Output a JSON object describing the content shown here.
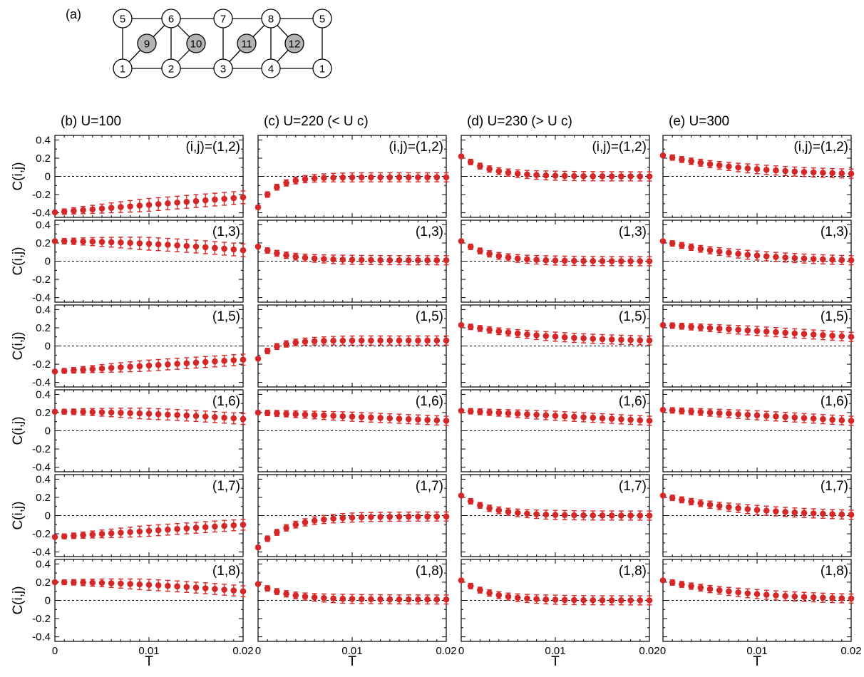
{
  "figure": {
    "lattice_panel_label": "(a)",
    "lattice_nodes": [
      {
        "label": "5",
        "fill": "white"
      },
      {
        "label": "6",
        "fill": "white"
      },
      {
        "label": "7",
        "fill": "white"
      },
      {
        "label": "8",
        "fill": "white"
      },
      {
        "label": "5",
        "fill": "white"
      },
      {
        "label": "9",
        "fill": "gray"
      },
      {
        "label": "10",
        "fill": "gray"
      },
      {
        "label": "11",
        "fill": "gray"
      },
      {
        "label": "12",
        "fill": "gray"
      },
      {
        "label": "1",
        "fill": "white"
      },
      {
        "label": "2",
        "fill": "white"
      },
      {
        "label": "3",
        "fill": "white"
      },
      {
        "label": "4",
        "fill": "white"
      },
      {
        "label": "1",
        "fill": "white"
      }
    ],
    "colors": {
      "marker": "#d62728",
      "error_bar": "#d62728",
      "zero_line": "#000000",
      "gray_site": "#b3b3b3"
    }
  },
  "chart_data": {
    "type": "scatter",
    "xlabel": "T",
    "ylabel": "C(i,j)",
    "xlim": [
      0,
      0.02
    ],
    "ylim": [
      -0.45,
      0.45
    ],
    "x_ticks": [
      0,
      0.01,
      0.02
    ],
    "x_tick_labels": [
      "0",
      "0.01",
      "0.02"
    ],
    "y_ticks": [
      0.4,
      0.2,
      0,
      -0.2,
      -0.4
    ],
    "y_tick_labels": [
      "0.4",
      "0.2",
      "0",
      "-0.2",
      "-0.4"
    ],
    "zero_line": "dashed",
    "x": [
      0,
      0.001,
      0.002,
      0.003,
      0.004,
      0.005,
      0.006,
      0.007,
      0.008,
      0.009,
      0.01,
      0.011,
      0.012,
      0.013,
      0.014,
      0.015,
      0.016,
      0.017,
      0.018,
      0.019,
      0.02
    ],
    "columns": [
      {
        "label": "(b)  U=100",
        "rows": [
          {
            "label": "(i,j)=(1,2)",
            "y0": -0.395,
            "y_end": -0.23,
            "shape": "lin",
            "err0": 0.01,
            "err_end": 0.07
          },
          {
            "label": "(1,3)",
            "y0": 0.22,
            "y_end": 0.12,
            "shape": "late",
            "err0": 0.01,
            "err_end": 0.07
          },
          {
            "label": "(1,5)",
            "y0": -0.28,
            "y_end": -0.15,
            "shape": "lin",
            "err0": 0.01,
            "err_end": 0.06
          },
          {
            "label": "(1,6)",
            "y0": 0.21,
            "y_end": 0.13,
            "shape": "late",
            "err0": 0.01,
            "err_end": 0.06
          },
          {
            "label": "(1,7)",
            "y0": -0.235,
            "y_end": -0.1,
            "shape": "lin",
            "err0": 0.01,
            "err_end": 0.06
          },
          {
            "label": "(1,8)",
            "y0": 0.2,
            "y_end": 0.1,
            "shape": "late",
            "err0": 0.01,
            "err_end": 0.06
          }
        ]
      },
      {
        "label": "(c)  U=220  (< U c)",
        "rows": [
          {
            "label": "(i,j)=(1,2)",
            "y0": -0.34,
            "y_end": -0.01,
            "shape": "vfast",
            "err0": 0.02,
            "err_end": 0.05
          },
          {
            "label": "(1,3)",
            "y0": 0.16,
            "y_end": 0.01,
            "shape": "fast",
            "err0": 0.02,
            "err_end": 0.05
          },
          {
            "label": "(1,5)",
            "y0": -0.14,
            "y_end": 0.06,
            "shape": "vfast",
            "err0": 0.02,
            "err_end": 0.05
          },
          {
            "label": "(1,6)",
            "y0": 0.2,
            "y_end": 0.11,
            "shape": "lin",
            "err0": 0.02,
            "err_end": 0.05
          },
          {
            "label": "(1,7)",
            "y0": -0.35,
            "y_end": -0.01,
            "shape": "fast",
            "err0": 0.02,
            "err_end": 0.05
          },
          {
            "label": "(1,8)",
            "y0": 0.18,
            "y_end": 0.01,
            "shape": "fast",
            "err0": 0.02,
            "err_end": 0.05
          }
        ]
      },
      {
        "label": "(d)  U=230  (> U c)",
        "rows": [
          {
            "label": "(i,j)=(1,2)",
            "y0": 0.22,
            "y_end": 0.0,
            "shape": "fast",
            "err0": 0.02,
            "err_end": 0.05
          },
          {
            "label": "(1,3)",
            "y0": 0.22,
            "y_end": 0.0,
            "shape": "fast",
            "err0": 0.02,
            "err_end": 0.05
          },
          {
            "label": "(1,5)",
            "y0": 0.23,
            "y_end": 0.06,
            "shape": "med",
            "err0": 0.02,
            "err_end": 0.05
          },
          {
            "label": "(1,6)",
            "y0": 0.22,
            "y_end": 0.11,
            "shape": "lin",
            "err0": 0.02,
            "err_end": 0.05
          },
          {
            "label": "(1,7)",
            "y0": 0.22,
            "y_end": 0.0,
            "shape": "fast",
            "err0": 0.02,
            "err_end": 0.05
          },
          {
            "label": "(1,8)",
            "y0": 0.22,
            "y_end": 0.0,
            "shape": "fast",
            "err0": 0.02,
            "err_end": 0.05
          }
        ]
      },
      {
        "label": "(e)  U=300",
        "rows": [
          {
            "label": "(i,j)=(1,2)",
            "y0": 0.23,
            "y_end": 0.03,
            "shape": "med",
            "err0": 0.02,
            "err_end": 0.05
          },
          {
            "label": "(1,3)",
            "y0": 0.22,
            "y_end": 0.01,
            "shape": "med",
            "err0": 0.02,
            "err_end": 0.05
          },
          {
            "label": "(1,5)",
            "y0": 0.23,
            "y_end": 0.1,
            "shape": "lin",
            "err0": 0.02,
            "err_end": 0.05
          },
          {
            "label": "(1,6)",
            "y0": 0.23,
            "y_end": 0.11,
            "shape": "lin",
            "err0": 0.02,
            "err_end": 0.05
          },
          {
            "label": "(1,7)",
            "y0": 0.22,
            "y_end": 0.01,
            "shape": "med",
            "err0": 0.02,
            "err_end": 0.05
          },
          {
            "label": "(1,8)",
            "y0": 0.22,
            "y_end": 0.02,
            "shape": "med",
            "err0": 0.02,
            "err_end": 0.05
          }
        ]
      }
    ]
  }
}
